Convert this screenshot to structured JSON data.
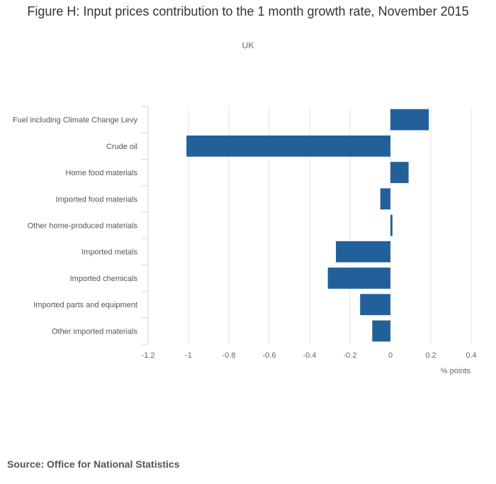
{
  "chart_data": {
    "type": "bar",
    "orientation": "horizontal",
    "title": "Figure H: Input prices contribution to the 1 month growth rate, November 2015",
    "subtitle": "UK",
    "categories": [
      "Fuel including Climate Change Levy",
      "Crude oil",
      "Home food materials",
      "Imported food materials",
      "Other home-produced materials",
      "Imported metals",
      "Imported chemicals",
      "Imported parts and equipment",
      "Other imported materials"
    ],
    "values": [
      0.19,
      -1.01,
      0.09,
      -0.05,
      0.01,
      -0.27,
      -0.31,
      -0.15,
      -0.09
    ],
    "xlim": [
      -1.2,
      0.4
    ],
    "xticks": [
      -1.2,
      -1,
      -0.8,
      -0.6,
      -0.4,
      -0.2,
      0,
      0.2,
      0.4
    ],
    "xtick_labels": [
      "-1.2",
      "-1",
      "-0.8",
      "-0.6",
      "-0.4",
      "-0.2",
      "0",
      "0.2",
      "0.4"
    ],
    "xlabel": "% points",
    "ylabel": "",
    "grid": true,
    "bar_color": "#22609a"
  },
  "source": "Source: Office for National Statistics"
}
